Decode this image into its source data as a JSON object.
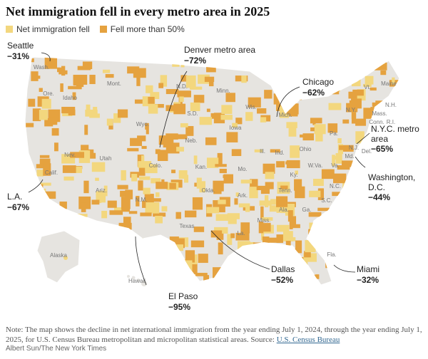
{
  "header": {
    "title": "Net immigration fell in every metro area in 2025"
  },
  "legend": [
    {
      "label": "Net immigration fell",
      "color": "#f3d77e"
    },
    {
      "label": "Fell more than 50%",
      "color": "#e5a23f"
    }
  ],
  "callouts": [
    {
      "name": "Seattle",
      "value": "−31%"
    },
    {
      "name": "Denver metro area",
      "value": "−72%"
    },
    {
      "name": "Chicago",
      "value": "−62%"
    },
    {
      "name": "N.Y.C. metro area",
      "value": "−65%"
    },
    {
      "name": "Washington, D.C.",
      "value": "−44%"
    },
    {
      "name": "Miami",
      "value": "−32%"
    },
    {
      "name": "Dallas",
      "value": "−52%"
    },
    {
      "name": "El Paso",
      "value": "−95%"
    },
    {
      "name": "L.A.",
      "value": "−67%"
    }
  ],
  "states": [
    "Wash.",
    "Ore.",
    "Idaho",
    "Mont.",
    "N.D.",
    "S.D.",
    "Wyo.",
    "Nev.",
    "Utah",
    "Colo.",
    "Calif.",
    "Ariz.",
    "N.M.",
    "Neb.",
    "Kan.",
    "Okla.",
    "Texas",
    "Minn.",
    "Iowa",
    "Mo.",
    "Ark.",
    "La.",
    "Wis.",
    "Ill.",
    "Mich.",
    "Ind.",
    "Ohio",
    "Ky.",
    "Tenn.",
    "Miss.",
    "Ala.",
    "Ga.",
    "Fla.",
    "S.C.",
    "N.C.",
    "Va.",
    "W.Va.",
    "Pa.",
    "N.Y.",
    "Vt.",
    "Maine",
    "N.H.",
    "Mass.",
    "Conn.",
    "R.I.",
    "N.J.",
    "Del.",
    "Md.",
    "Alaska",
    "Hawaii"
  ],
  "note": {
    "text": "Note: The map shows the decline in net international immigration from the year ending July 1, 2024, through the year ending July 1, 2025, for U.S. Census Bureau metropolitan and micropolitan statistical areas. Source: ",
    "link": "U.S. Census Bureau"
  },
  "credit": "Albert Sun/The New York Times"
}
